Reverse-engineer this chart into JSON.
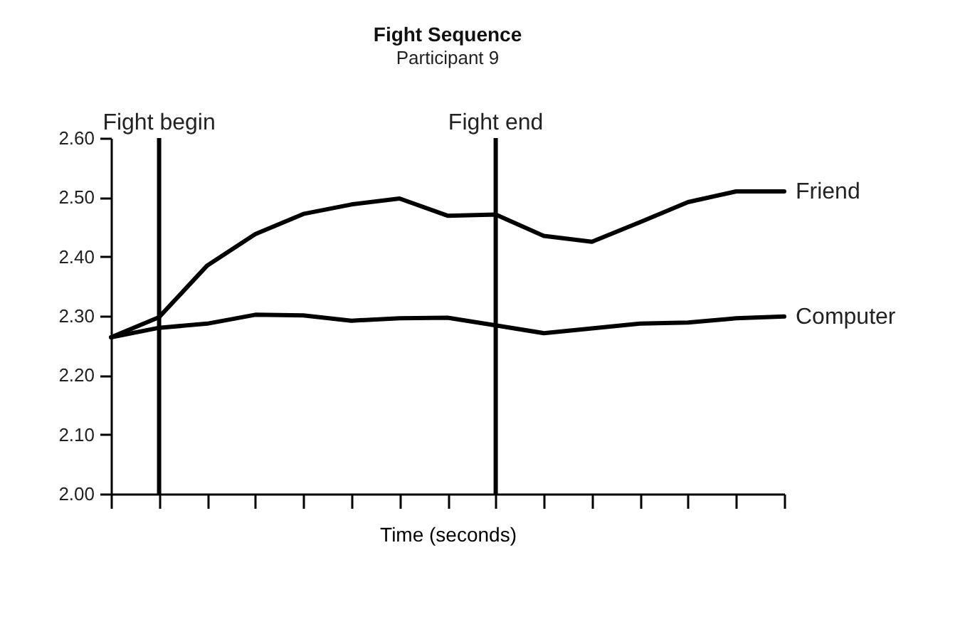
{
  "chart_data": {
    "type": "line",
    "title": "Fight Sequence",
    "subtitle": "Participant 9",
    "xlabel": "Time (seconds)",
    "categories": [
      null,
      null,
      null,
      null,
      null,
      null,
      null,
      null,
      null,
      null,
      null,
      null,
      null,
      null,
      null
    ],
    "ylim": [
      2.0,
      2.6
    ],
    "yticks": [
      {
        "value": 2.0,
        "label": "2.00"
      },
      {
        "value": 2.1,
        "label": "2.10"
      },
      {
        "value": 2.2,
        "label": "2.20"
      },
      {
        "value": 2.3,
        "label": "2.30"
      },
      {
        "value": 2.4,
        "label": "2.40"
      },
      {
        "value": 2.5,
        "label": "2.50"
      },
      {
        "value": 2.6,
        "label": "2.60"
      }
    ],
    "grid": false,
    "legend": false,
    "marker": "none",
    "line_style": "solid",
    "annotations": [
      "Fight begin",
      "Fight end"
    ],
    "series": [
      {
        "name": "Friend",
        "color": "#000000",
        "values": [
          2.264,
          2.298,
          2.385,
          2.438,
          2.472,
          2.488,
          2.498,
          2.469,
          2.471,
          2.435,
          2.425,
          2.458,
          2.492,
          2.51,
          2.51
        ]
      },
      {
        "name": "Computer",
        "color": "#000000",
        "values": [
          2.264,
          2.28,
          2.287,
          2.302,
          2.301,
          2.292,
          2.296,
          2.297,
          2.284,
          2.271,
          2.279,
          2.287,
          2.289,
          2.296,
          2.299
        ]
      }
    ]
  }
}
